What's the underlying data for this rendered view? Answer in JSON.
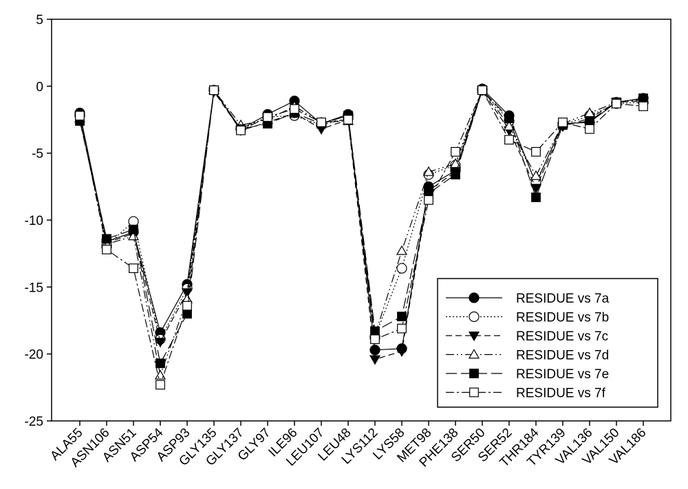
{
  "chart_data": {
    "type": "line",
    "title": "",
    "xlabel": "",
    "ylabel": "",
    "ylim": [
      -25,
      5
    ],
    "yticks": [
      5,
      0,
      -5,
      -10,
      -15,
      -20,
      -25
    ],
    "grid": false,
    "legend_position": "bottom-right",
    "categories": [
      "ALA55",
      "ASN106",
      "ASN51",
      "ASP54",
      "ASP93",
      "GLY135",
      "GLY137",
      "GLY97",
      "ILE96",
      "LEU107",
      "LEU48",
      "LYS112",
      "LYS58",
      "MET98",
      "PHE138",
      "SER50",
      "SER52",
      "THR184",
      "TYR139",
      "VAL136",
      "VAL150",
      "VAL186"
    ],
    "series": [
      {
        "name": "RESIDUE vs 7a",
        "marker": "circle-filled",
        "dash": "solid",
        "values": [
          -2.0,
          -11.6,
          -10.9,
          -18.4,
          -14.8,
          -0.3,
          -3.2,
          -2.1,
          -1.1,
          -2.8,
          -2.1,
          -19.7,
          -19.6,
          -7.5,
          -6.3,
          -0.2,
          -2.2,
          -7.3,
          -2.8,
          -2.7,
          -1.2,
          -0.9
        ]
      },
      {
        "name": "RESIDUE vs 7b",
        "marker": "circle-open",
        "dash": "dotted",
        "values": [
          -2.2,
          -11.9,
          -10.1,
          -18.9,
          -15.1,
          -0.3,
          -3.2,
          -2.3,
          -2.2,
          -2.9,
          -2.4,
          -18.7,
          -13.6,
          -6.6,
          -5.9,
          -0.3,
          -2.6,
          -7.2,
          -2.9,
          -2.2,
          -1.3,
          -1.2
        ]
      },
      {
        "name": "RESIDUE vs 7c",
        "marker": "triangle-down-filled",
        "dash": "dashed",
        "values": [
          -2.5,
          -11.7,
          -11.0,
          -19.1,
          -15.4,
          -0.4,
          -3.3,
          -2.7,
          -2.0,
          -3.2,
          -2.5,
          -20.4,
          -19.8,
          -7.8,
          -6.4,
          -0.3,
          -3.3,
          -7.6,
          -3.0,
          -2.4,
          -1.2,
          -1.1
        ]
      },
      {
        "name": "RESIDUE vs 7d",
        "marker": "triangle-up-open",
        "dash": "dash-dot-dot",
        "values": [
          -2.4,
          -11.8,
          -11.2,
          -21.6,
          -15.9,
          -0.3,
          -2.9,
          -2.5,
          -1.5,
          -2.7,
          -2.6,
          -18.6,
          -12.3,
          -6.4,
          -5.8,
          -0.2,
          -3.0,
          -6.7,
          -2.8,
          -2.0,
          -1.2,
          -1.0
        ]
      },
      {
        "name": "RESIDUE vs 7e",
        "marker": "square-filled",
        "dash": "long-dash",
        "values": [
          -2.6,
          -11.4,
          -10.7,
          -20.7,
          -17.0,
          -0.3,
          -3.2,
          -2.8,
          -2.0,
          -2.8,
          -2.2,
          -18.3,
          -17.2,
          -8.0,
          -6.6,
          -0.3,
          -2.4,
          -8.3,
          -2.9,
          -2.6,
          -1.2,
          -0.9
        ]
      },
      {
        "name": "RESIDUE vs 7f",
        "marker": "square-open",
        "dash": "dash-dot",
        "values": [
          -2.2,
          -12.2,
          -13.6,
          -22.3,
          -16.4,
          -0.3,
          -3.3,
          -2.3,
          -1.7,
          -2.7,
          -2.5,
          -18.9,
          -18.1,
          -8.5,
          -4.9,
          -0.3,
          -4.0,
          -4.9,
          -2.7,
          -3.2,
          -1.3,
          -1.5
        ]
      }
    ]
  }
}
